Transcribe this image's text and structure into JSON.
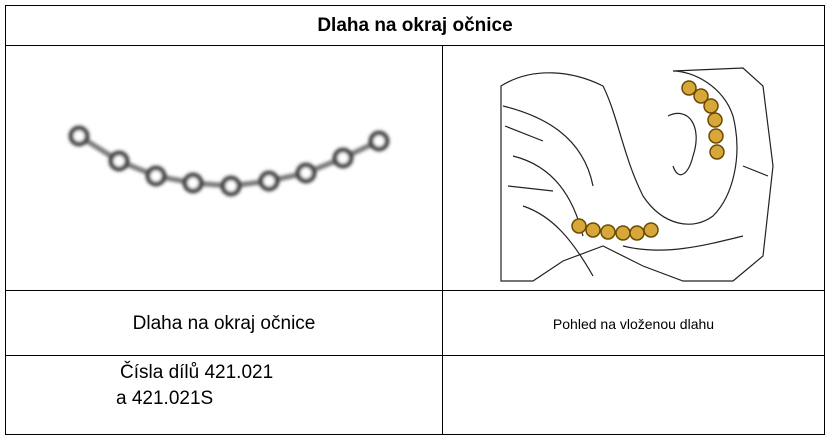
{
  "table": {
    "title": "Dlaha na okraj očnice",
    "captions": [
      "Dlaha na okraj očnice",
      "Pohled na vloženou dlahu"
    ],
    "part_numbers": [
      "Čísla dílů 421.021",
      "a 421.021S"
    ]
  }
}
